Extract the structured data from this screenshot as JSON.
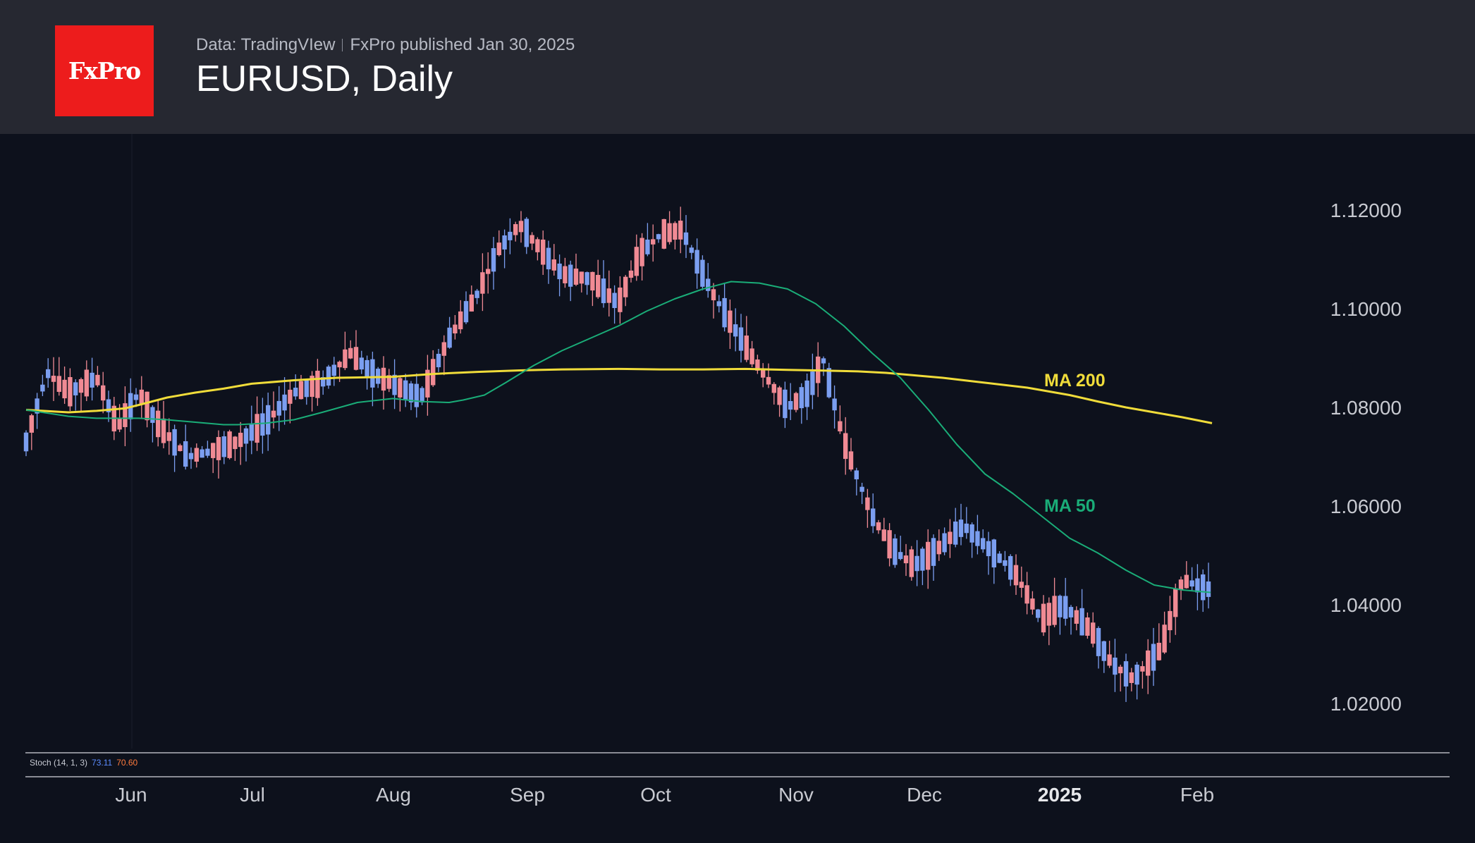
{
  "header": {
    "logo": "FxPro",
    "source": "Data: TradingVIew",
    "published": "FxPro published Jan 30, 2025",
    "title": "EURUSD, Daily"
  },
  "colors": {
    "up": "#7b9ef0",
    "down": "#f08a94",
    "ma200": "#f0dc3a",
    "ma50": "#1aad78",
    "axis_text": "#c8cad1",
    "grid_line": "#c8cad1"
  },
  "stochastic": {
    "label": "Stoch (14, 1, 3)",
    "k": "73.11",
    "d": "70.60"
  },
  "chart_data": {
    "type": "candlestick",
    "title": "EURUSD, Daily",
    "x_axis": {
      "tick_labels": [
        "Jun",
        "Jul",
        "Aug",
        "Sep",
        "Oct",
        "Nov",
        "Dec",
        "2025",
        "Feb"
      ],
      "bold_label": "2025"
    },
    "y_axis": {
      "tick_values": [
        1.12,
        1.1,
        1.08,
        1.06,
        1.04,
        1.02
      ],
      "tick_labels": [
        "1.12000",
        "1.10000",
        "1.08000",
        "1.06000",
        "1.04000",
        "1.02000"
      ],
      "range": [
        1.008,
        1.135
      ],
      "position": "right"
    },
    "annotations": [
      "MA 200",
      "MA 50"
    ],
    "series": [
      {
        "name": "MA 200",
        "points": [
          [
            0,
            1.0795
          ],
          [
            60,
            1.079
          ],
          [
            100,
            1.0793
          ],
          [
            140,
            1.0798
          ],
          [
            160,
            1.0805
          ],
          [
            200,
            1.082
          ],
          [
            240,
            1.083
          ],
          [
            280,
            1.0838
          ],
          [
            320,
            1.0848
          ],
          [
            380,
            1.0855
          ],
          [
            440,
            1.086
          ],
          [
            520,
            1.0862
          ],
          [
            580,
            1.0868
          ],
          [
            640,
            1.0872
          ],
          [
            700,
            1.0875
          ],
          [
            760,
            1.0877
          ],
          [
            840,
            1.0878
          ],
          [
            900,
            1.0877
          ],
          [
            960,
            1.0877
          ],
          [
            1020,
            1.0878
          ],
          [
            1080,
            1.0876
          ],
          [
            1120,
            1.0875
          ],
          [
            1180,
            1.0873
          ],
          [
            1220,
            1.087
          ],
          [
            1260,
            1.0865
          ],
          [
            1300,
            1.086
          ],
          [
            1360,
            1.085
          ],
          [
            1420,
            1.084
          ],
          [
            1480,
            1.0825
          ],
          [
            1520,
            1.0812
          ],
          [
            1560,
            1.08
          ],
          [
            1600,
            1.079
          ],
          [
            1640,
            1.078
          ],
          [
            1682,
            1.0768
          ]
        ]
      },
      {
        "name": "MA 50",
        "points": [
          [
            0,
            1.0795
          ],
          [
            60,
            1.0782
          ],
          [
            100,
            1.0778
          ],
          [
            160,
            1.0778
          ],
          [
            200,
            1.0775
          ],
          [
            240,
            1.077
          ],
          [
            280,
            1.0765
          ],
          [
            300,
            1.0765
          ],
          [
            340,
            1.0768
          ],
          [
            380,
            1.0775
          ],
          [
            420,
            1.079
          ],
          [
            470,
            1.081
          ],
          [
            520,
            1.0818
          ],
          [
            560,
            1.0812
          ],
          [
            600,
            1.081
          ],
          [
            620,
            1.0815
          ],
          [
            650,
            1.0825
          ],
          [
            680,
            1.085
          ],
          [
            720,
            1.0885
          ],
          [
            760,
            1.0915
          ],
          [
            800,
            1.094
          ],
          [
            840,
            1.0965
          ],
          [
            880,
            1.0995
          ],
          [
            920,
            1.102
          ],
          [
            960,
            1.104
          ],
          [
            1000,
            1.1055
          ],
          [
            1040,
            1.1052
          ],
          [
            1080,
            1.104
          ],
          [
            1120,
            1.101
          ],
          [
            1160,
            1.0965
          ],
          [
            1200,
            1.091
          ],
          [
            1240,
            1.086
          ],
          [
            1280,
            1.0795
          ],
          [
            1320,
            1.0725
          ],
          [
            1360,
            1.0665
          ],
          [
            1400,
            1.0625
          ],
          [
            1440,
            1.058
          ],
          [
            1480,
            1.0535
          ],
          [
            1520,
            1.0505
          ],
          [
            1560,
            1.047
          ],
          [
            1600,
            1.044
          ],
          [
            1640,
            1.043
          ],
          [
            1680,
            1.0425
          ]
        ]
      }
    ]
  }
}
